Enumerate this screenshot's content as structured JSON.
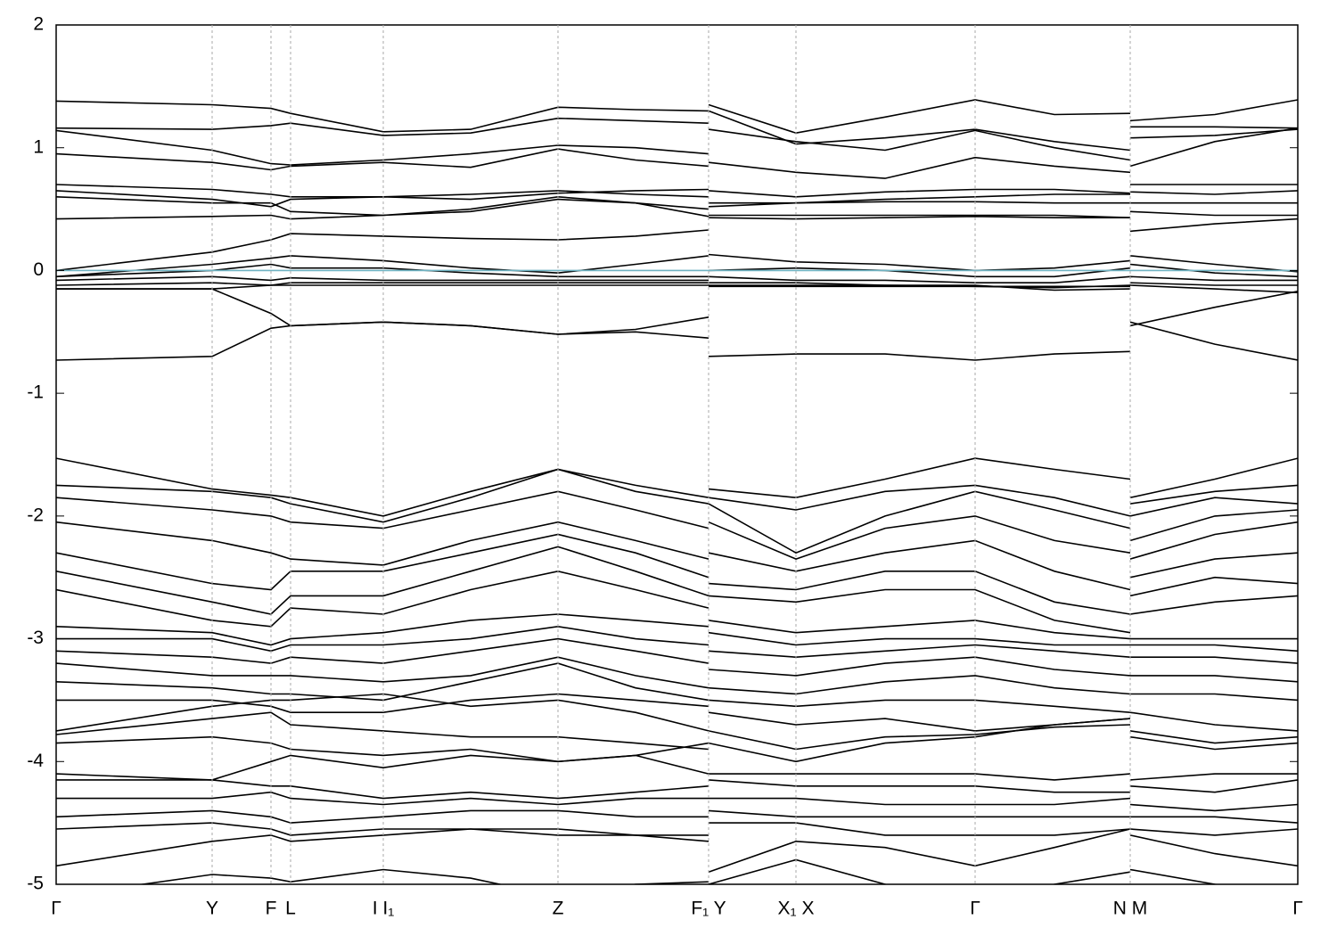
{
  "chart_data": {
    "type": "line",
    "color": "#000000",
    "xgrid": true,
    "fermi_line": {
      "value": 0,
      "color": "#6fb3c2"
    },
    "xlim": [
      0,
      13.93
    ],
    "ylim": [
      -5,
      2
    ],
    "yticks": [
      -5,
      -4,
      -3,
      -2,
      -1,
      0,
      1,
      2
    ],
    "xticks": [
      {
        "value": 0,
        "label": "Γ"
      },
      {
        "value": 1.75,
        "label": "Y"
      },
      {
        "value": 2.41,
        "label": "F"
      },
      {
        "value": 2.63,
        "label": "L"
      },
      {
        "value": 3.67,
        "label": "I  I₁"
      },
      {
        "value": 5.63,
        "label": "Z"
      },
      {
        "value": 7.32,
        "label": "F₁ Y"
      },
      {
        "value": 8.3,
        "label": "X₁ X"
      },
      {
        "value": 10.31,
        "label": "Γ"
      },
      {
        "value": 12.05,
        "label": "N M"
      },
      {
        "value": 13.93,
        "label": "Γ"
      }
    ],
    "x": [
      0,
      1.75,
      2.41,
      2.63,
      3.67,
      4.65,
      5.63,
      6.5,
      7.32,
      7.32,
      7.32,
      8.3,
      9.3,
      10.31,
      11.2,
      12.05,
      12.05,
      12.05,
      13.0,
      13.93
    ],
    "series": [
      {
        "values": [
          1.38,
          1.35,
          1.32,
          1.28,
          1.13,
          1.15,
          1.33,
          1.31,
          1.3,
          null,
          1.35,
          1.12,
          1.25,
          1.39,
          1.27,
          1.28,
          null,
          1.22,
          1.27,
          1.39
        ]
      },
      {
        "values": [
          1.16,
          1.15,
          1.18,
          1.2,
          1.1,
          1.12,
          1.24,
          1.22,
          1.2,
          null,
          1.3,
          1.03,
          1.08,
          1.15,
          1.05,
          0.98,
          null,
          1.17,
          1.17,
          1.16
        ]
      },
      {
        "values": [
          1.14,
          0.98,
          0.87,
          0.86,
          0.9,
          0.95,
          1.02,
          1.0,
          0.95,
          null,
          1.15,
          1.05,
          0.98,
          1.14,
          1.0,
          0.9,
          null,
          1.08,
          1.1,
          1.15
        ]
      },
      {
        "values": [
          0.95,
          0.88,
          0.82,
          0.85,
          0.88,
          0.84,
          0.99,
          0.9,
          0.85,
          null,
          0.88,
          0.8,
          0.75,
          0.92,
          0.85,
          0.8,
          null,
          0.85,
          1.05,
          1.16
        ]
      },
      {
        "values": [
          0.7,
          0.66,
          0.62,
          0.6,
          0.6,
          0.62,
          0.65,
          0.62,
          0.6,
          null,
          0.65,
          0.6,
          0.64,
          0.66,
          0.66,
          0.63,
          null,
          0.7,
          0.7,
          0.7
        ]
      },
      {
        "values": [
          0.65,
          0.58,
          0.52,
          0.58,
          0.6,
          0.58,
          0.63,
          0.65,
          0.66,
          null,
          0.55,
          0.55,
          0.58,
          0.6,
          0.62,
          0.62,
          null,
          0.64,
          0.62,
          0.65
        ]
      },
      {
        "values": [
          0.6,
          0.55,
          0.55,
          0.48,
          0.45,
          0.48,
          0.58,
          0.55,
          0.5,
          null,
          0.52,
          0.55,
          0.56,
          0.56,
          0.55,
          0.55,
          null,
          0.55,
          0.55,
          0.55
        ]
      },
      {
        "values": [
          0.42,
          0.44,
          0.45,
          0.42,
          0.45,
          0.5,
          0.6,
          0.55,
          0.44,
          null,
          0.45,
          0.45,
          0.45,
          0.45,
          0.45,
          0.43,
          null,
          0.48,
          0.45,
          0.45
        ]
      },
      {
        "values": [
          0.0,
          0.15,
          0.25,
          0.3,
          0.28,
          0.26,
          0.25,
          0.28,
          0.33,
          null,
          0.43,
          0.42,
          0.43,
          0.44,
          0.43,
          0.43,
          null,
          0.32,
          0.38,
          0.42
        ]
      },
      {
        "values": [
          -0.05,
          0.05,
          0.1,
          0.12,
          0.08,
          0.02,
          -0.02,
          0.05,
          0.12,
          null,
          0.13,
          0.07,
          0.05,
          0.0,
          0.02,
          0.08,
          null,
          0.12,
          0.05,
          -0.01
        ]
      },
      {
        "values": [
          -0.05,
          0.0,
          0.05,
          0.02,
          0.02,
          -0.02,
          -0.05,
          -0.05,
          -0.05,
          null,
          0.0,
          0.02,
          0.0,
          -0.05,
          -0.05,
          0.02,
          null,
          0.05,
          -0.02,
          -0.05
        ]
      },
      {
        "values": [
          -0.08,
          -0.05,
          -0.08,
          -0.06,
          -0.08,
          -0.08,
          -0.08,
          -0.08,
          -0.08,
          null,
          -0.05,
          -0.08,
          -0.08,
          -0.1,
          -0.1,
          -0.05,
          null,
          -0.05,
          -0.08,
          -0.08
        ]
      },
      {
        "values": [
          -0.12,
          -0.1,
          -0.12,
          -0.12,
          -0.12,
          -0.12,
          -0.12,
          -0.12,
          -0.12,
          null,
          -0.12,
          -0.12,
          -0.12,
          -0.13,
          -0.14,
          -0.12,
          null,
          -0.1,
          -0.12,
          -0.12
        ]
      },
      {
        "values": [
          -0.15,
          -0.15,
          -0.12,
          -0.1,
          -0.1,
          -0.1,
          -0.1,
          -0.1,
          -0.1,
          null,
          -0.1,
          -0.1,
          -0.12,
          -0.12,
          -0.16,
          -0.15,
          null,
          -0.12,
          -0.15,
          -0.18
        ]
      },
      {
        "values": [
          -0.73,
          -0.7,
          -0.47,
          -0.45,
          -0.42,
          -0.45,
          -0.52,
          -0.48,
          -0.38,
          null,
          -0.7,
          -0.68,
          -0.68,
          -0.73,
          -0.68,
          -0.66,
          null,
          -0.42,
          -0.6,
          -0.73
        ]
      },
      {
        "values": [
          -0.15,
          -0.15,
          -0.35,
          -0.45,
          -0.42,
          -0.45,
          -0.52,
          -0.5,
          -0.55,
          null,
          -0.13,
          -0.13,
          -0.13,
          -0.13,
          -0.13,
          -0.13,
          null,
          -0.45,
          -0.3,
          -0.17
        ]
      },
      {
        "values": [
          -1.53,
          -1.78,
          -1.83,
          -1.85,
          -2.0,
          -1.8,
          -1.62,
          -1.75,
          -1.85,
          null,
          -1.78,
          -1.85,
          -1.7,
          -1.53,
          -1.62,
          -1.7,
          null,
          -1.85,
          -1.7,
          -1.53
        ]
      },
      {
        "values": [
          -1.75,
          -1.8,
          -1.85,
          -1.9,
          -2.05,
          -1.85,
          -1.62,
          -1.8,
          -1.9,
          null,
          -1.85,
          -1.95,
          -1.8,
          -1.75,
          -1.85,
          -2.0,
          null,
          -1.9,
          -1.8,
          -1.75
        ]
      },
      {
        "values": [
          -1.85,
          -1.95,
          -2.0,
          -2.05,
          -2.1,
          -1.95,
          -1.8,
          -1.95,
          -2.1,
          null,
          -1.9,
          -2.3,
          -2.0,
          -1.8,
          -1.95,
          -2.1,
          null,
          -2.0,
          -1.85,
          -1.9
        ]
      },
      {
        "values": [
          -2.05,
          -2.2,
          -2.3,
          -2.35,
          -2.4,
          -2.2,
          -2.05,
          -2.2,
          -2.35,
          null,
          -2.05,
          -2.35,
          -2.1,
          -2.0,
          -2.2,
          -2.3,
          null,
          -2.2,
          -2.0,
          -1.95
        ]
      },
      {
        "values": [
          -2.3,
          -2.55,
          -2.6,
          -2.45,
          -2.45,
          -2.3,
          -2.15,
          -2.3,
          -2.5,
          null,
          -2.3,
          -2.45,
          -2.3,
          -2.2,
          -2.45,
          -2.6,
          null,
          -2.35,
          -2.15,
          -2.05
        ]
      },
      {
        "values": [
          -2.45,
          -2.7,
          -2.8,
          -2.65,
          -2.65,
          -2.45,
          -2.25,
          -2.45,
          -2.65,
          null,
          -2.55,
          -2.6,
          -2.45,
          -2.45,
          -2.7,
          -2.8,
          null,
          -2.5,
          -2.35,
          -2.3
        ]
      },
      {
        "values": [
          -2.6,
          -2.85,
          -2.9,
          -2.75,
          -2.8,
          -2.6,
          -2.45,
          -2.6,
          -2.75,
          null,
          -2.65,
          -2.7,
          -2.6,
          -2.6,
          -2.85,
          -2.95,
          null,
          -2.65,
          -2.5,
          -2.55
        ]
      },
      {
        "values": [
          -2.9,
          -2.95,
          -3.05,
          -3.0,
          -2.95,
          -2.85,
          -2.8,
          -2.85,
          -2.9,
          null,
          -2.85,
          -2.95,
          -2.9,
          -2.85,
          -2.95,
          -3.0,
          null,
          -2.8,
          -2.7,
          -2.65
        ]
      },
      {
        "values": [
          -3.0,
          -3.0,
          -3.1,
          -3.05,
          -3.05,
          -3.0,
          -2.9,
          -3.0,
          -3.05,
          null,
          -2.95,
          -3.05,
          -3.0,
          -3.0,
          -3.05,
          -3.05,
          null,
          -3.0,
          -3.0,
          -3.0
        ]
      },
      {
        "values": [
          -3.1,
          -3.15,
          -3.2,
          -3.15,
          -3.2,
          -3.1,
          -3.0,
          -3.1,
          -3.2,
          null,
          -3.1,
          -3.15,
          -3.1,
          -3.05,
          -3.1,
          -3.15,
          null,
          -3.05,
          -3.05,
          -3.1
        ]
      },
      {
        "values": [
          -3.2,
          -3.3,
          -3.3,
          -3.3,
          -3.35,
          -3.3,
          -3.15,
          -3.3,
          -3.4,
          null,
          -3.25,
          -3.3,
          -3.2,
          -3.15,
          -3.25,
          -3.3,
          null,
          -3.15,
          -3.15,
          -3.2
        ]
      },
      {
        "values": [
          -3.35,
          -3.4,
          -3.45,
          -3.45,
          -3.5,
          -3.35,
          -3.2,
          -3.4,
          -3.5,
          null,
          -3.4,
          -3.45,
          -3.35,
          -3.3,
          -3.4,
          -3.45,
          null,
          -3.3,
          -3.3,
          -3.35
        ]
      },
      {
        "values": [
          -3.5,
          -3.5,
          -3.55,
          -3.6,
          -3.6,
          -3.5,
          -3.45,
          -3.5,
          -3.55,
          null,
          -3.5,
          -3.55,
          -3.5,
          -3.5,
          -3.55,
          -3.6,
          null,
          -3.45,
          -3.45,
          -3.5
        ]
      },
      {
        "values": [
          -3.75,
          -3.55,
          -3.5,
          -3.5,
          -3.45,
          -3.55,
          -3.5,
          -3.6,
          -3.75,
          null,
          -3.6,
          -3.7,
          -3.65,
          -3.75,
          -3.7,
          -3.65,
          null,
          -3.6,
          -3.7,
          -3.75
        ]
      },
      {
        "values": [
          -3.78,
          -3.65,
          -3.6,
          -3.7,
          -3.75,
          -3.8,
          -3.8,
          -3.85,
          -3.9,
          null,
          -3.75,
          -3.9,
          -3.8,
          -3.78,
          -3.72,
          -3.7,
          null,
          -3.75,
          -3.85,
          -3.8
        ]
      },
      {
        "values": [
          -3.85,
          -3.8,
          -3.85,
          -3.9,
          -3.95,
          -3.9,
          -4.0,
          -3.95,
          -3.85,
          null,
          -3.85,
          -4.0,
          -3.85,
          -3.8,
          -3.7,
          -3.65,
          null,
          -3.8,
          -3.9,
          -3.85
        ]
      },
      {
        "values": [
          -4.1,
          -4.15,
          -4.0,
          -3.95,
          -4.05,
          -3.95,
          -4.0,
          -3.95,
          -4.1,
          null,
          -4.1,
          -4.1,
          -4.1,
          -4.1,
          -4.15,
          -4.1,
          null,
          -4.15,
          -4.1,
          -4.1
        ]
      },
      {
        "values": [
          -4.15,
          -4.15,
          -4.2,
          -4.2,
          -4.3,
          -4.25,
          -4.3,
          -4.25,
          -4.2,
          null,
          -4.15,
          -4.2,
          -4.2,
          -4.2,
          -4.25,
          -4.25,
          null,
          -4.2,
          -4.25,
          -4.15
        ]
      },
      {
        "values": [
          -4.3,
          -4.3,
          -4.25,
          -4.3,
          -4.35,
          -4.3,
          -4.35,
          -4.3,
          -4.3,
          null,
          -4.3,
          -4.3,
          -4.35,
          -4.35,
          -4.35,
          -4.3,
          null,
          -4.35,
          -4.4,
          -4.35
        ]
      },
      {
        "values": [
          -4.45,
          -4.4,
          -4.45,
          -4.5,
          -4.45,
          -4.4,
          -4.4,
          -4.45,
          -4.45,
          null,
          -4.4,
          -4.45,
          -4.45,
          -4.45,
          -4.45,
          -4.45,
          null,
          -4.45,
          -4.45,
          -4.5
        ]
      },
      {
        "values": [
          -4.55,
          -4.5,
          -4.55,
          -4.6,
          -4.55,
          -4.55,
          -4.6,
          -4.6,
          -4.6,
          null,
          -4.5,
          -4.5,
          -4.6,
          -4.6,
          -4.6,
          -4.55,
          null,
          -4.55,
          -4.6,
          -4.55
        ]
      },
      {
        "values": [
          -4.85,
          -4.65,
          -4.6,
          -4.65,
          -4.6,
          -4.55,
          -4.55,
          -4.6,
          -4.65,
          null,
          -4.9,
          -4.65,
          -4.7,
          -4.85,
          -4.7,
          -4.55,
          null,
          -4.6,
          -4.75,
          -4.85
        ]
      },
      {
        "values": [
          -5.1,
          -4.92,
          -4.95,
          -4.98,
          -4.88,
          -4.95,
          -5.1,
          -5.0,
          -4.98,
          null,
          -5.0,
          -4.8,
          -5.0,
          -5.2,
          -5.0,
          -4.9,
          null,
          -4.88,
          -5.0,
          -5.1
        ]
      }
    ]
  }
}
